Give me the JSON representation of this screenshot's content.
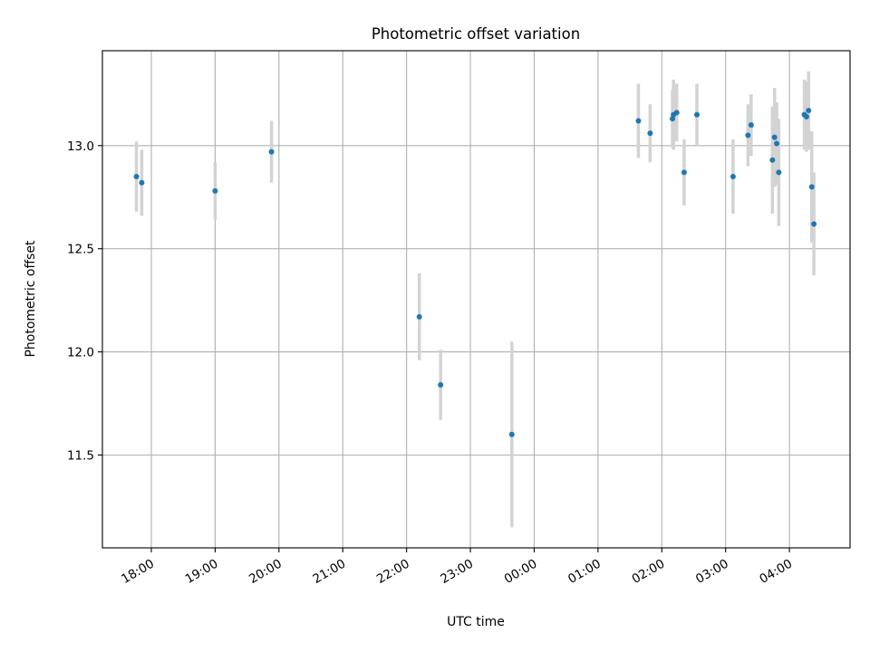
{
  "chart_data": {
    "type": "scatter",
    "title": "Photometric offset variation",
    "xlabel": "UTC time",
    "ylabel": "Photometric offset",
    "x_tick_labels": [
      "18:00",
      "19:00",
      "20:00",
      "21:00",
      "22:00",
      "23:00",
      "00:00",
      "01:00",
      "02:00",
      "03:00",
      "04:00"
    ],
    "y_tick_labels": [
      "11.5",
      "12.0",
      "12.5",
      "13.0"
    ],
    "y_ticks": [
      11.5,
      12.0,
      12.5,
      13.0
    ],
    "x_ticks": [
      "17:59",
      "18:59",
      "19:59",
      "20:59",
      "21:59",
      "22:59",
      "23:59",
      "00:59",
      "01:59",
      "02:59",
      "03:59"
    ],
    "xlim": [
      "17:13",
      "04:56"
    ],
    "ylim": [
      11.05,
      13.46
    ],
    "grid": true,
    "marker_color": "#1f77b4",
    "errorbar_color": "#d3d3d3",
    "points": [
      {
        "time": "17:45",
        "y": 12.85,
        "err": 0.17
      },
      {
        "time": "17:50",
        "y": 12.82,
        "err": 0.16
      },
      {
        "time": "18:59",
        "y": 12.78,
        "err": 0.14
      },
      {
        "time": "19:52",
        "y": 12.97,
        "err": 0.15
      },
      {
        "time": "22:11",
        "y": 12.17,
        "err": 0.21
      },
      {
        "time": "22:31",
        "y": 11.84,
        "err": 0.17
      },
      {
        "time": "23:38",
        "y": 11.6,
        "err": 0.45
      },
      {
        "time": "01:37",
        "y": 13.12,
        "err": 0.18
      },
      {
        "time": "01:48",
        "y": 13.06,
        "err": 0.14
      },
      {
        "time": "02:09",
        "y": 13.13,
        "err": 0.14
      },
      {
        "time": "02:10",
        "y": 13.15,
        "err": 0.17
      },
      {
        "time": "02:13",
        "y": 13.16,
        "err": 0.14
      },
      {
        "time": "02:20",
        "y": 12.87,
        "err": 0.16
      },
      {
        "time": "02:32",
        "y": 13.15,
        "err": 0.15
      },
      {
        "time": "03:06",
        "y": 12.85,
        "err": 0.18
      },
      {
        "time": "03:20",
        "y": 13.05,
        "err": 0.15
      },
      {
        "time": "03:23",
        "y": 13.1,
        "err": 0.15
      },
      {
        "time": "03:43",
        "y": 12.93,
        "err": 0.26
      },
      {
        "time": "03:45",
        "y": 13.04,
        "err": 0.24
      },
      {
        "time": "03:47",
        "y": 13.01,
        "err": 0.2
      },
      {
        "time": "03:49",
        "y": 12.87,
        "err": 0.26
      },
      {
        "time": "04:13",
        "y": 13.15,
        "err": 0.17
      },
      {
        "time": "04:15",
        "y": 13.14,
        "err": 0.17
      },
      {
        "time": "04:17",
        "y": 13.17,
        "err": 0.19
      },
      {
        "time": "04:20",
        "y": 12.8,
        "err": 0.27
      },
      {
        "time": "04:22",
        "y": 12.62,
        "err": 0.25
      }
    ]
  }
}
